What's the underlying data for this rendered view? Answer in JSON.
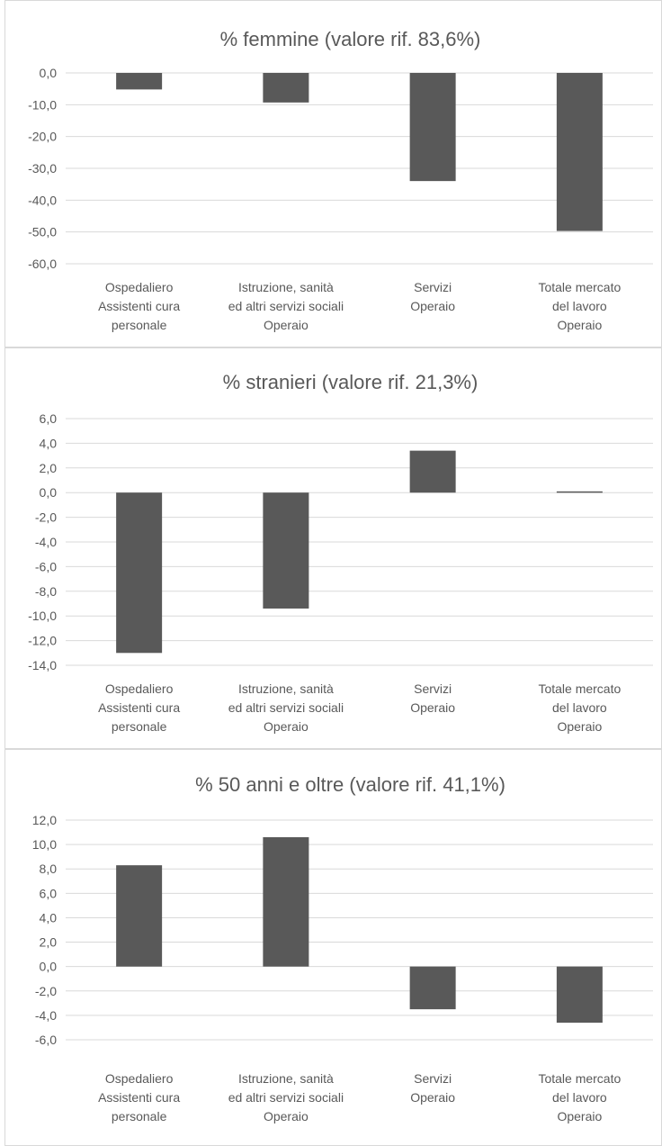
{
  "chart_data": [
    {
      "type": "bar",
      "title": "% femmine (valore rif. 83,6%)",
      "categories": [
        [
          "Ospedaliero",
          "Assistenti cura",
          "personale"
        ],
        [
          "Istruzione, sanità",
          "ed altri servizi sociali",
          "Operaio"
        ],
        [
          "Servizi",
          "Operaio"
        ],
        [
          "Totale mercato",
          "del lavoro",
          "Operaio"
        ]
      ],
      "values": [
        -5.2,
        -9.3,
        -34.0,
        -49.7
      ],
      "ylim": [
        -60,
        0
      ],
      "yticks": [
        "0,0",
        "-10,0",
        "-20,0",
        "-30,0",
        "-40,0",
        "-50,0",
        "-60,0"
      ],
      "color": "#595959",
      "grid": true
    },
    {
      "type": "bar",
      "title": "% stranieri (valore rif. 21,3%)",
      "categories": [
        [
          "Ospedaliero",
          "Assistenti cura",
          "personale"
        ],
        [
          "Istruzione, sanità",
          "ed altri servizi sociali",
          "Operaio"
        ],
        [
          "Servizi",
          "Operaio"
        ],
        [
          "Totale mercato",
          "del lavoro",
          "Operaio"
        ]
      ],
      "values": [
        -13.0,
        -9.4,
        3.4,
        0.1
      ],
      "ylim": [
        -14,
        6
      ],
      "yticks": [
        "6,0",
        "4,0",
        "2,0",
        "0,0",
        "-2,0",
        "-4,0",
        "-6,0",
        "-8,0",
        "-10,0",
        "-12,0",
        "-14,0"
      ],
      "color": "#595959",
      "grid": true
    },
    {
      "type": "bar",
      "title": "% 50 anni e oltre (valore rif. 41,1%)",
      "categories": [
        [
          "Ospedaliero",
          "Assistenti cura",
          "personale"
        ],
        [
          "Istruzione, sanità",
          "ed altri servizi sociali",
          "Operaio"
        ],
        [
          "Servizi",
          "Operaio"
        ],
        [
          "Totale mercato",
          "del lavoro",
          "Operaio"
        ]
      ],
      "values": [
        8.3,
        10.6,
        -3.5,
        -4.6
      ],
      "ylim": [
        -6,
        12
      ],
      "yticks": [
        "12,0",
        "10,0",
        "8,0",
        "6,0",
        "4,0",
        "2,0",
        "0,0",
        "-2,0",
        "-4,0",
        "-6,0"
      ],
      "color": "#595959",
      "grid": true
    }
  ]
}
